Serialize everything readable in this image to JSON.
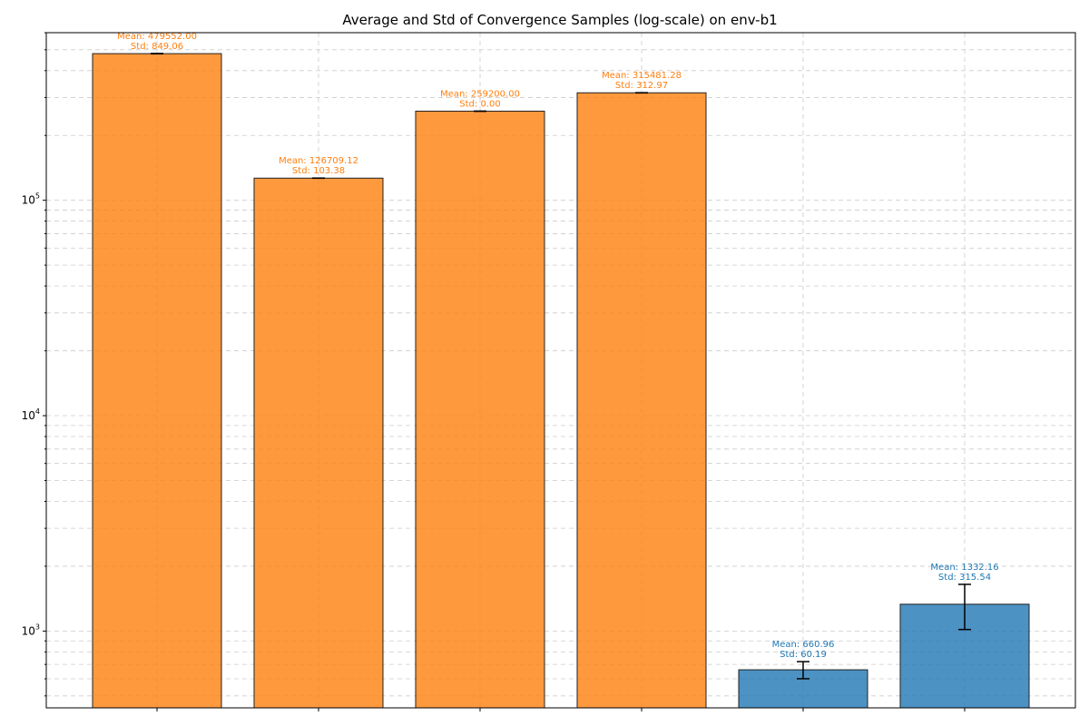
{
  "chart_data": {
    "type": "bar",
    "title": "Average and Std of Convergence Samples (log-scale) on env-b1",
    "xlabel": "",
    "ylabel": "",
    "yscale": "log",
    "ylim": [
      440,
      600000
    ],
    "grid": true,
    "categories": [
      "",
      "",
      "",
      "",
      "",
      ""
    ],
    "bars": [
      {
        "mean": 479552.0,
        "std": 849.06,
        "label_mean": "Mean: 479552.00",
        "label_std": "Std: 849.06",
        "color": "#ff7f0e"
      },
      {
        "mean": 126709.12,
        "std": 103.38,
        "label_mean": "Mean: 126709.12",
        "label_std": "Std: 103.38",
        "color": "#ff7f0e"
      },
      {
        "mean": 259200.0,
        "std": 0.0,
        "label_mean": "Mean: 259200.00",
        "label_std": "Std: 0.00",
        "color": "#ff7f0e"
      },
      {
        "mean": 315481.28,
        "std": 312.97,
        "label_mean": "Mean: 315481.28",
        "label_std": "Std: 312.97",
        "color": "#ff7f0e"
      },
      {
        "mean": 660.96,
        "std": 60.19,
        "label_mean": "Mean: 660.96",
        "label_std": "Std: 60.19",
        "color": "#1f77b4"
      },
      {
        "mean": 1332.16,
        "std": 315.54,
        "label_mean": "Mean: 1332.16",
        "label_std": "Std: 315.54",
        "color": "#1f77b4"
      }
    ],
    "y_ticks": [
      {
        "value": 1000,
        "base": "10",
        "exp": "3"
      },
      {
        "value": 10000,
        "base": "10",
        "exp": "4"
      },
      {
        "value": 100000,
        "base": "10",
        "exp": "5"
      }
    ]
  },
  "colors": {
    "orange": "#ff7f0e",
    "blue": "#1f77b4",
    "grid": "#cccccc",
    "edge": "#222222"
  }
}
